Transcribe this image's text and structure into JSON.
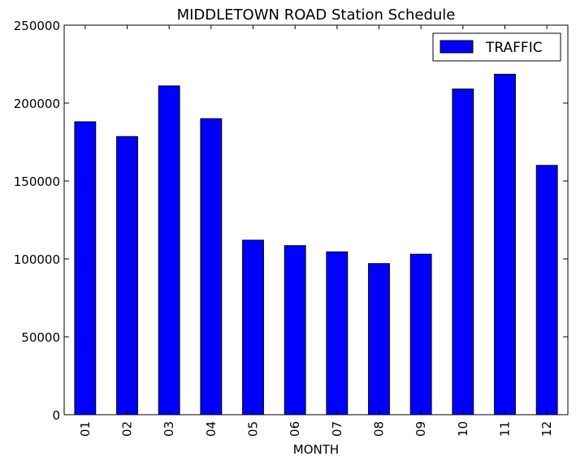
{
  "chart_data": {
    "type": "bar",
    "title": "MIDDLETOWN ROAD Station Schedule",
    "xlabel": "MONTH",
    "ylabel": "",
    "categories": [
      "01",
      "02",
      "03",
      "04",
      "05",
      "06",
      "07",
      "08",
      "09",
      "10",
      "11",
      "12"
    ],
    "series": [
      {
        "name": "TRAFFIC",
        "color": "#0000ff",
        "values": [
          188000,
          178500,
          211000,
          190000,
          112000,
          108500,
          104500,
          97000,
          103000,
          209000,
          218500,
          160000
        ]
      }
    ],
    "ylim": [
      0,
      250000
    ],
    "yticks": [
      "0",
      "50000",
      "100000",
      "150000",
      "200000",
      "250000"
    ],
    "grid": false,
    "legend_position": "top-right"
  }
}
